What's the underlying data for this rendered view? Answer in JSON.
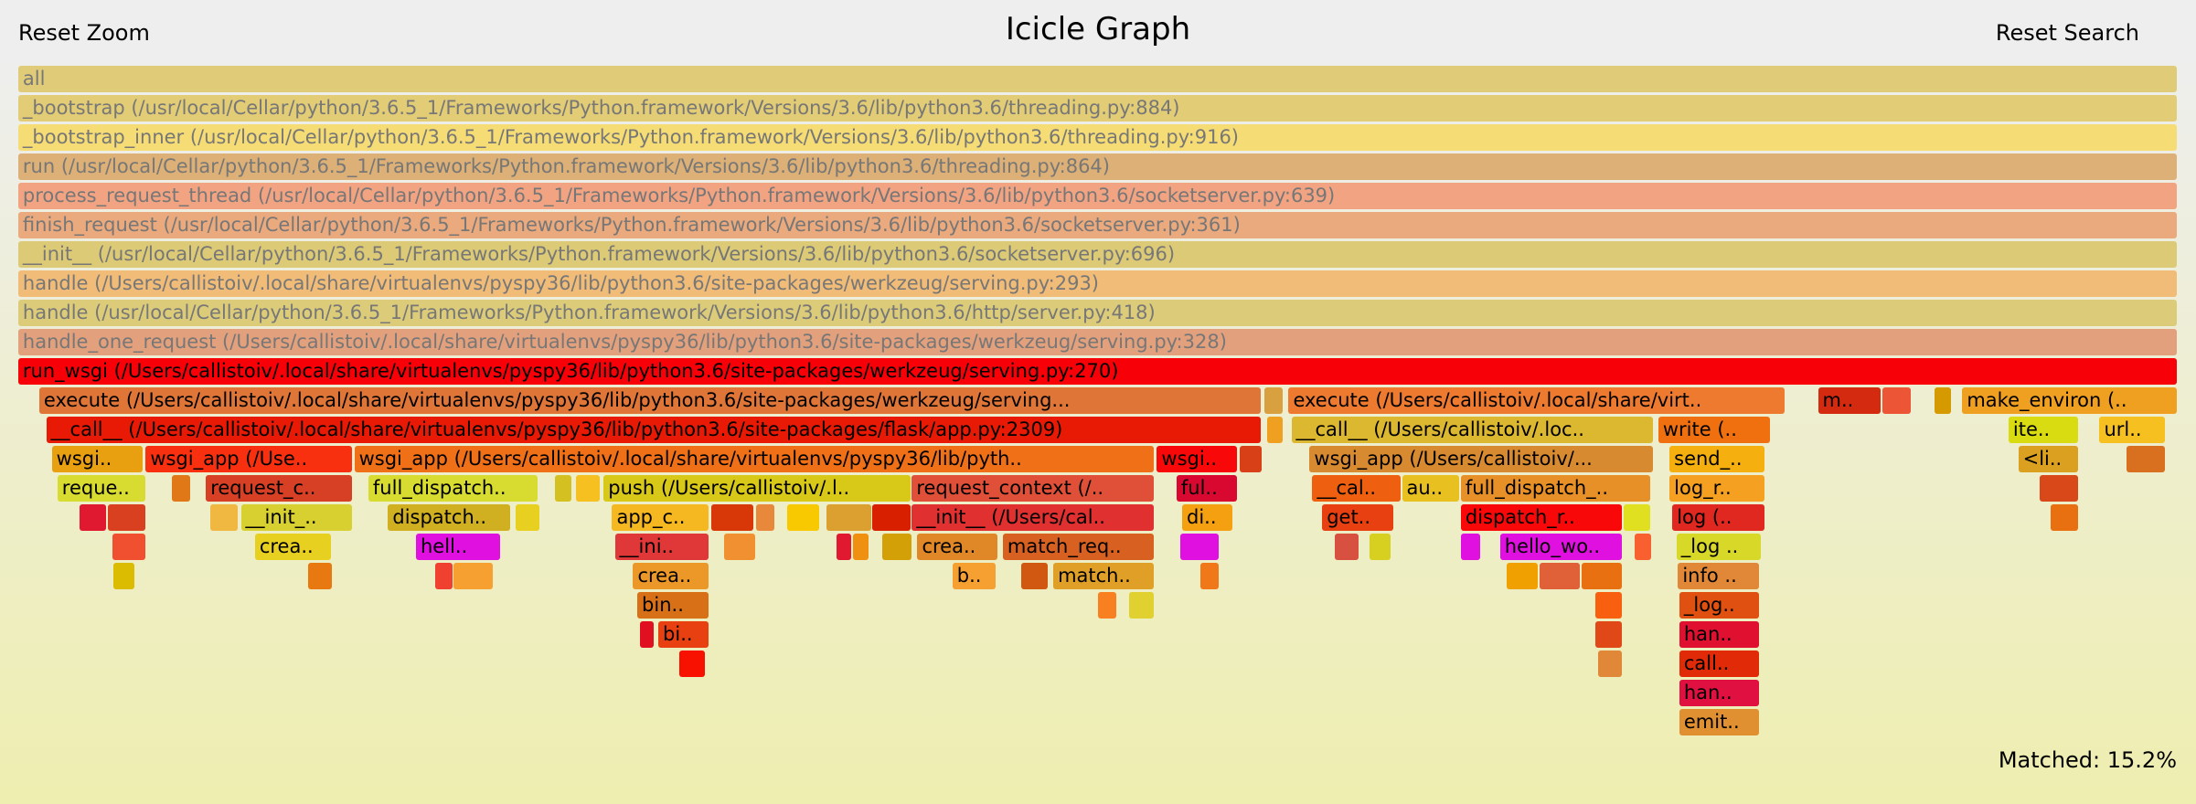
{
  "header": {
    "reset_zoom": "Reset Zoom",
    "title": "Icicle Graph",
    "reset_search": "Reset Search"
  },
  "footer": {
    "matched": "Matched: 15.2%"
  },
  "rows": [
    [
      {
        "label": "all",
        "color": "#e0cc78"
      }
    ],
    [
      {
        "label": "_bootstrap (/usr/local/Cellar/python/3.6.5_1/Frameworks/Python.framework/Versions/3.6/lib/python3.6/threading.py:884)",
        "color": "#e2cc76"
      }
    ],
    [
      {
        "label": "_bootstrap_inner (/usr/local/Cellar/python/3.6.5_1/Frameworks/Python.framework/Versions/3.6/lib/python3.6/threading.py:916)",
        "color": "#f5dc74"
      }
    ],
    [
      {
        "label": "run (/usr/local/Cellar/python/3.6.5_1/Frameworks/Python.framework/Versions/3.6/lib/python3.6/threading.py:864)",
        "color": "#dcb076"
      }
    ],
    [
      {
        "label": "process_request_thread (/usr/local/Cellar/python/3.6.5_1/Frameworks/Python.framework/Versions/3.6/lib/python3.6/socketserver.py:639)",
        "color": "#f2a482"
      }
    ],
    [
      {
        "label": "finish_request (/usr/local/Cellar/python/3.6.5_1/Frameworks/Python.framework/Versions/3.6/lib/python3.6/socketserver.py:361)",
        "color": "#eaaa7e"
      }
    ],
    [
      {
        "label": "__init__ (/usr/local/Cellar/python/3.6.5_1/Frameworks/Python.framework/Versions/3.6/lib/python3.6/socketserver.py:696)",
        "color": "#dcca76"
      }
    ],
    [
      {
        "label": "handle (/Users/callistoiv/.local/share/virtualenvs/pyspy36/lib/python3.6/site-packages/werkzeug/serving.py:293)",
        "color": "#f0bc78"
      }
    ],
    [
      {
        "label": "handle (/usr/local/Cellar/python/3.6.5_1/Frameworks/Python.framework/Versions/3.6/lib/python3.6/http/server.py:418)",
        "color": "#dccc7a"
      }
    ],
    [
      {
        "label": "handle_one_request (/Users/callistoiv/.local/share/virtualenvs/pyspy36/lib/python3.6/site-packages/werkzeug/serving.py:328)",
        "color": "#e2a07c"
      }
    ],
    [
      {
        "label": "run_wsgi (/Users/callistoiv/.local/share/virtualenvs/pyspy36/lib/python3.6/site-packages/werkzeug/serving.py:270)",
        "color": "#f80008"
      }
    ],
    [
      {
        "label": "execute (/Users/callistoiv/.local/share/virtualenvs/pyspy36/lib/python3.6/site-packages/werkzeug/serving...",
        "color": "#e07538"
      },
      {
        "label": "",
        "color": "#d9a040"
      },
      {
        "label": "execute (/Users/callistoiv/.local/share/virt..",
        "color": "#ee7a30"
      },
      {
        "label": "m..",
        "color": "#d42a10"
      },
      {
        "label": "",
        "color": "#ec5535"
      },
      {
        "label": "",
        "color": "#d49a00"
      },
      {
        "label": "make_environ (..",
        "color": "#f0a020"
      }
    ],
    [
      {
        "label": "__call__ (/Users/callistoiv/.local/share/virtualenvs/pyspy36/lib/python3.6/site-packages/flask/app.py:2309)",
        "color": "#e81a05"
      },
      {
        "label": "",
        "color": "#f0a020"
      },
      {
        "label": "__call__ (/Users/callistoiv/.loc..",
        "color": "#dcb830"
      },
      {
        "label": "write (..",
        "color": "#f07010"
      },
      {
        "label": "ite..",
        "color": "#d8dc10"
      },
      {
        "label": "url..",
        "color": "#f5c020"
      }
    ],
    [
      {
        "label": "wsgi..",
        "color": "#e8a010"
      },
      {
        "label": "wsgi_app (/Use..",
        "color": "#f83010"
      },
      {
        "label": "wsgi_app (/Users/callistoiv/.local/share/virtualenvs/pyspy36/lib/pyth..",
        "color": "#f07018"
      },
      {
        "label": "wsgi..",
        "color": "#f80808"
      },
      {
        "label": "",
        "color": "#d84018"
      },
      {
        "label": "wsgi_app (/Users/callistoiv/...",
        "color": "#d88a30"
      },
      {
        "label": "send_..",
        "color": "#f5b010"
      },
      {
        "label": "<li..",
        "color": "#dca020"
      },
      {
        "label": "",
        "color": "#d87020"
      }
    ],
    [
      {
        "label": "reque..",
        "color": "#d8dc30"
      },
      {
        "label": "",
        "color": "#e07818"
      },
      {
        "label": "request_c..",
        "color": "#d84025"
      },
      {
        "label": "full_dispatch..",
        "color": "#d8dc30"
      },
      {
        "label": "",
        "color": "#d4c020"
      },
      {
        "label": "",
        "color": "#f5c020"
      },
      {
        "label": "push (/Users/callistoiv/.l..",
        "color": "#d8c818"
      },
      {
        "label": "request_context (/..",
        "color": "#e05038"
      },
      {
        "label": "ful..",
        "color": "#d80830"
      },
      {
        "label": "__cal..",
        "color": "#ee6010"
      },
      {
        "label": "au..",
        "color": "#e8c020"
      },
      {
        "label": "full_dispatch_..",
        "color": "#e89028"
      },
      {
        "label": "log_r..",
        "color": "#f5a020"
      },
      {
        "label": "",
        "color": "#d84818"
      }
    ],
    [
      {
        "label": "",
        "color": "#e01830"
      },
      {
        "label": "",
        "color": "#d84020"
      },
      {
        "label": "",
        "color": "#f0b840"
      },
      {
        "label": "__init_..",
        "color": "#d8d030"
      },
      {
        "label": "dispatch..",
        "color": "#d0b020"
      },
      {
        "label": "",
        "color": "#e8d020"
      },
      {
        "label": "app_c..",
        "color": "#f5b820"
      },
      {
        "label": "",
        "color": "#d83808"
      },
      {
        "label": "",
        "color": "#e8883a"
      },
      {
        "label": "",
        "color": "#f8c800"
      },
      {
        "label": "",
        "color": "#dca030"
      },
      {
        "label": "",
        "color": "#d82000"
      },
      {
        "label": "__init__ (/Users/cal..",
        "color": "#e03030"
      },
      {
        "label": "di..",
        "color": "#f5a010"
      },
      {
        "label": "get..",
        "color": "#e84010"
      },
      {
        "label": "dispatch_r..",
        "color": "#f80808"
      },
      {
        "label": "",
        "color": "#e0e020"
      },
      {
        "label": "log (..",
        "color": "#e02820"
      },
      {
        "label": "",
        "color": "#e87010"
      }
    ],
    [
      {
        "label": "",
        "color": "#f05030"
      },
      {
        "label": "crea..",
        "color": "#e8d020"
      },
      {
        "label": "hell..",
        "color": "#e010e0"
      },
      {
        "label": "__ini..",
        "color": "#e03838"
      },
      {
        "label": "",
        "color": "#f09030"
      },
      {
        "label": "",
        "color": "#e01830"
      },
      {
        "label": "",
        "color": "#f09010"
      },
      {
        "label": "",
        "color": "#d4a008"
      },
      {
        "label": "crea..",
        "color": "#e08828"
      },
      {
        "label": "match_req..",
        "color": "#d86020"
      },
      {
        "label": "",
        "color": "#e010e0"
      },
      {
        "label": "",
        "color": "#d85040"
      },
      {
        "label": "",
        "color": "#d8d020"
      },
      {
        "label": "",
        "color": "#e010e0"
      },
      {
        "label": "hello_wo..",
        "color": "#e010e0"
      },
      {
        "label": "",
        "color": "#f86030"
      },
      {
        "label": "_log ..",
        "color": "#d8d828"
      }
    ],
    [
      {
        "label": "",
        "color": "#dcbc00"
      },
      {
        "label": "",
        "color": "#e87810"
      },
      {
        "label": "",
        "color": "#f04030"
      },
      {
        "label": "",
        "color": "#f5a030"
      },
      {
        "label": "crea..",
        "color": "#ec9828"
      },
      {
        "label": "b..",
        "color": "#f5a030"
      },
      {
        "label": "",
        "color": "#d05810"
      },
      {
        "label": "match..",
        "color": "#e0a028"
      },
      {
        "label": "",
        "color": "#f07818"
      },
      {
        "label": "",
        "color": "#f0a000"
      },
      {
        "label": "",
        "color": "#e06038"
      },
      {
        "label": "",
        "color": "#e87010"
      },
      {
        "label": "info ..",
        "color": "#e08838"
      }
    ],
    [
      {
        "label": "bin..",
        "color": "#d87018"
      },
      {
        "label": "",
        "color": "#f88020"
      },
      {
        "label": "",
        "color": "#e0d030"
      },
      {
        "label": "",
        "color": "#f86010"
      },
      {
        "label": "_log..",
        "color": "#e05010"
      }
    ],
    [
      {
        "label": "",
        "color": "#e01020"
      },
      {
        "label": "bi..",
        "color": "#e84010"
      },
      {
        "label": "",
        "color": "#e04818"
      },
      {
        "label": "han..",
        "color": "#e01030"
      }
    ],
    [
      {
        "label": "",
        "color": "#f81000"
      },
      {
        "label": "",
        "color": "#e08838"
      },
      {
        "label": "call..",
        "color": "#e02a08"
      }
    ],
    [
      {
        "label": "han..",
        "color": "#e01040"
      }
    ],
    [
      {
        "label": "emit..",
        "color": "#e09030"
      }
    ]
  ]
}
